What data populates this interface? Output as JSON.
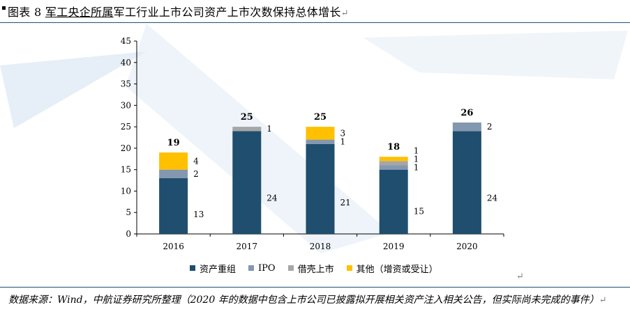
{
  "header": {
    "title_prefix": "图表 8 ",
    "title_underlined": "军工央企所属",
    "title_suffix": "军工行业上市公司资产上市次数保持总体增长",
    "return_mark": "↵"
  },
  "source": {
    "text": "数据来源：Wind，中航证券研究所整理（2020 年的数据中包含上市公司已披露拟开展相关资产注入相关公告，但实际尚未完成的事件）",
    "return_mark": "↵"
  },
  "colors": {
    "asset_restructuring": "#1f4e6e",
    "ipo": "#8497b0",
    "backdoor": "#a6a6a6",
    "other": "#ffc000",
    "watermark": "#dbe7f3"
  },
  "chart_data": {
    "type": "bar",
    "stacked": true,
    "categories": [
      "2016",
      "2017",
      "2018",
      "2019",
      "2020"
    ],
    "series": [
      {
        "name": "资产重组",
        "values": [
          13,
          24,
          21,
          15,
          24
        ]
      },
      {
        "name": "IPO",
        "values": [
          2,
          0,
          1,
          1,
          2
        ]
      },
      {
        "name": "借壳上市",
        "values": [
          0,
          1,
          0,
          1,
          0
        ]
      },
      {
        "name": "其他（增资或受让）",
        "values": [
          4,
          0,
          3,
          1,
          0
        ]
      }
    ],
    "totals": [
      19,
      25,
      25,
      18,
      26
    ],
    "ylim": [
      0,
      45
    ],
    "yticks": [
      "0",
      "5",
      "10",
      "15",
      "20",
      "25",
      "30",
      "35",
      "40",
      "45"
    ],
    "legend_position": "bottom",
    "grid": false
  },
  "legend_return_mark": "↵"
}
